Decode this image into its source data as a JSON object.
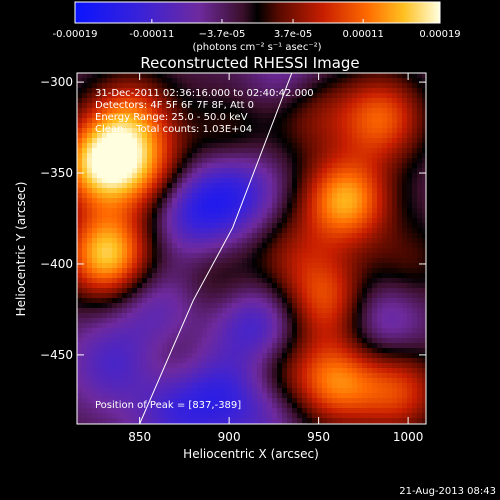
{
  "chart_data": {
    "type": "heatmap",
    "title": "Reconstructed RHESSI Image",
    "xlabel": "Heliocentric X (arcsec)",
    "ylabel": "Heliocentric Y (arcsec)",
    "xlim": [
      815,
      1010
    ],
    "ylim": [
      -488,
      -295
    ],
    "x_ticks": [
      850,
      900,
      950,
      1000
    ],
    "y_ticks": [
      -300,
      -350,
      -400,
      -450
    ],
    "colorbar": {
      "range": [
        -0.00019,
        0.00019
      ],
      "tick_values": [
        -0.00019,
        -0.00011,
        -3.7e-05,
        3.7e-05,
        0.00011,
        0.00019
      ],
      "tick_labels": [
        "-0.00019",
        "-0.00011",
        "−3.7e-05",
        "3.7e-05",
        "0.00011",
        "0.00019"
      ],
      "units": "(photons cm⁻² s⁻¹ asec⁻²)"
    },
    "annotations": [
      "31-Dec-2011 02:36:16.000 to 02:40:42.000",
      "Detectors: 4F 5F 6F 7F 8F, Att 0",
      "Energy Range: 25.0 - 50.0 keV",
      "Clean    Total counts: 1.03E+04"
    ],
    "peak_label": "Position of Peak = [837,-389]",
    "peak": [
      837,
      -389
    ],
    "limb_line": [
      [
        850,
        -488
      ],
      [
        880,
        -420
      ],
      [
        902,
        -380
      ],
      [
        935,
        -295
      ]
    ],
    "hot_spots": [
      {
        "x": 828,
        "y": -345,
        "v": 0.00019
      },
      {
        "x": 832,
        "y": -395,
        "v": 0.00019
      },
      {
        "x": 845,
        "y": -320,
        "v": 0.00012
      },
      {
        "x": 855,
        "y": -350,
        "v": 0.0001
      },
      {
        "x": 965,
        "y": -365,
        "v": 0.00017
      },
      {
        "x": 985,
        "y": -320,
        "v": 0.00013
      },
      {
        "x": 945,
        "y": -315,
        "v": 8e-05
      },
      {
        "x": 955,
        "y": -420,
        "v": 0.00012
      },
      {
        "x": 960,
        "y": -465,
        "v": 0.00014
      },
      {
        "x": 995,
        "y": -470,
        "v": 0.00011
      },
      {
        "x": 925,
        "y": -460,
        "v": 7e-05
      },
      {
        "x": 900,
        "y": -330,
        "v": 5e-05
      },
      {
        "x": 895,
        "y": -410,
        "v": 4e-05
      },
      {
        "x": 935,
        "y": -395,
        "v": 6e-05
      },
      {
        "x": 870,
        "y": -455,
        "v": 4e-05
      },
      {
        "x": 1000,
        "y": -400,
        "v": 5e-05
      }
    ],
    "cold_spots": [
      {
        "x": 880,
        "y": -370,
        "v": -0.0001
      },
      {
        "x": 905,
        "y": -360,
        "v": -9e-05
      },
      {
        "x": 915,
        "y": -435,
        "v": -0.0001
      },
      {
        "x": 870,
        "y": -480,
        "v": -8e-05
      },
      {
        "x": 835,
        "y": -455,
        "v": -7e-05
      },
      {
        "x": 895,
        "y": -470,
        "v": -8e-05
      },
      {
        "x": 935,
        "y": -300,
        "v": -6e-05
      },
      {
        "x": 985,
        "y": -430,
        "v": -7e-05
      },
      {
        "x": 860,
        "y": -425,
        "v": -6e-05
      },
      {
        "x": 920,
        "y": -480,
        "v": -6e-05
      }
    ]
  },
  "footer": {
    "timestamp": "21-Aug-2013 08:43"
  }
}
